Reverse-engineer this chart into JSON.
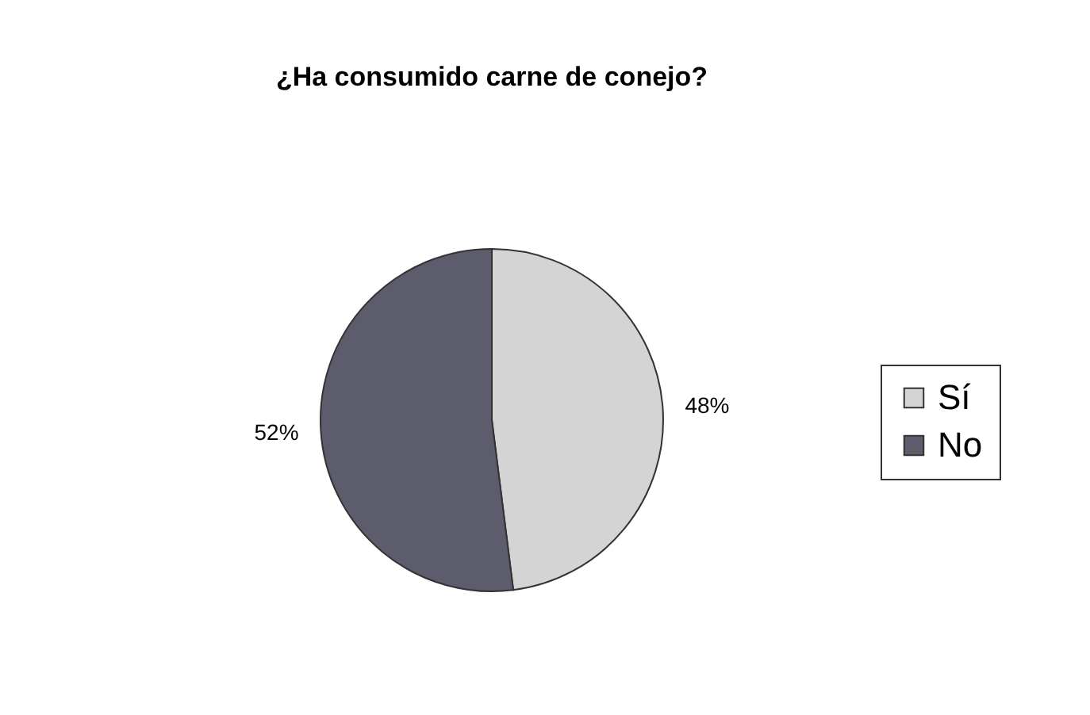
{
  "chart_data": {
    "type": "pie",
    "title": "¿Ha consumido carne de conejo?",
    "categories": [
      "Sí",
      "No"
    ],
    "values": [
      48,
      52
    ],
    "colors": [
      "#d4d4d4",
      "#5c5c6c"
    ],
    "value_labels": [
      "48%",
      "52%"
    ],
    "legend": "right"
  }
}
